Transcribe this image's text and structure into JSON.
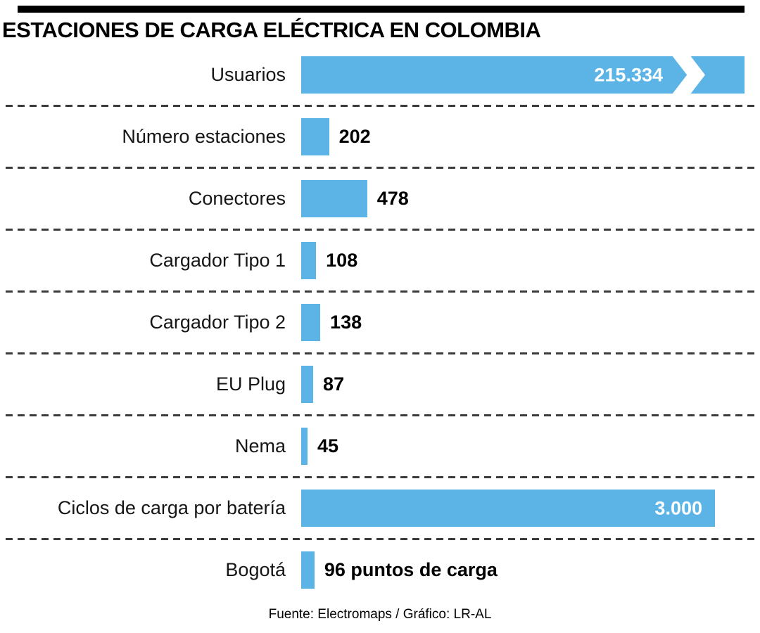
{
  "accent_color": "#5BB4E5",
  "chart_data": {
    "type": "bar",
    "orientation": "horizontal",
    "title": "ESTACIONES DE CARGA ELÉCTRICA EN COLOMBIA",
    "source": "Fuente: Electromaps / Gráfico: LR-AL",
    "categories": [
      "Usuarios",
      "Número estaciones",
      "Conectores",
      "Cargador Tipo 1",
      "Cargador Tipo 2",
      "EU Plug",
      "Nema",
      "Ciclos de carga por batería",
      "Bogotá"
    ],
    "values": [
      215334,
      202,
      478,
      108,
      138,
      87,
      45,
      3000,
      96
    ],
    "value_labels": [
      "215.334",
      "202",
      "478",
      "108",
      "138",
      "87",
      "45",
      "3.000",
      "96 puntos de carga"
    ],
    "value_inside": [
      true,
      false,
      false,
      false,
      false,
      false,
      false,
      true,
      false
    ],
    "broken_bar": [
      true,
      false,
      false,
      false,
      false,
      false,
      false,
      false,
      false
    ],
    "grid": "dashed-row-separators",
    "legend": "none",
    "xlim": [
      0,
      3200
    ]
  }
}
